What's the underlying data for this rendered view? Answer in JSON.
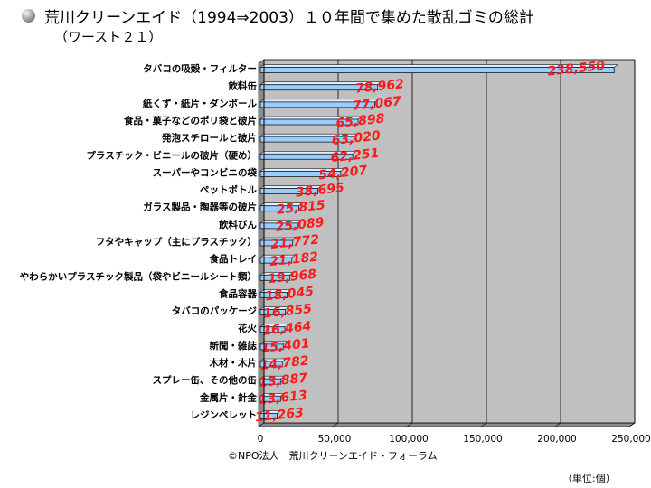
{
  "title": "荒川クリーンエイド（1994⇒2003）１０年間で集めた散乱ゴミの総計",
  "subtitle": "（ワースト２１）",
  "credit": "©NPO法人　荒川クリーンエイド・フォーラム",
  "unit_note": "（単位:個）",
  "colors": {
    "bar_fill": "#99ccff",
    "bar_stroke": "#1a1a1a",
    "plot_bg": "#c0c0c0",
    "gridline": "#000000",
    "data_label": "#ff1a1a"
  },
  "chart_data": {
    "type": "bar",
    "orientation": "horizontal",
    "categories": [
      "タバコの吸殻・フィルター",
      "飲料缶",
      "紙くず・紙片・ダンボール",
      "食品・菓子などのポリ袋と破片",
      "発泡スチロールと破片",
      "プラスチック・ビニールの破片（硬め）",
      "スーパーやコンビニの袋",
      "ペットボトル",
      "ガラス製品・陶器等の破片",
      "飲料びん",
      "フタやキャップ（主にプラスチック）",
      "食品トレイ",
      "やわらかいプラスチック製品（袋やビニールシート類）",
      "食品容器",
      "タバコのパッケージ",
      "花火",
      "新聞・雑誌",
      "木材・木片",
      "スプレー缶、その他の缶",
      "金属片・針金",
      "レジンペレット"
    ],
    "values": [
      238550,
      78962,
      77067,
      65898,
      63020,
      62251,
      54207,
      38695,
      25815,
      25089,
      21772,
      21182,
      19968,
      18045,
      16855,
      16464,
      15401,
      14782,
      13887,
      13613,
      11263
    ],
    "value_labels": [
      "238,550",
      "78,962",
      "77,067",
      "65,898",
      "63,020",
      "62,251",
      "54,207",
      "38,695",
      "25,815",
      "25,089",
      "21,772",
      "21,182",
      "19,968",
      "18,045",
      "16,855",
      "16,464",
      "15,401",
      "14,782",
      "13,887",
      "13,613",
      "11,263"
    ],
    "xlim": [
      0,
      250000
    ],
    "xticks": [
      0,
      50000,
      100000,
      150000,
      200000,
      250000
    ],
    "xtick_labels": [
      "0",
      "50,000",
      "100,000",
      "150,000",
      "200,000",
      "250,000"
    ],
    "grid": "vertical",
    "legend": "none"
  }
}
